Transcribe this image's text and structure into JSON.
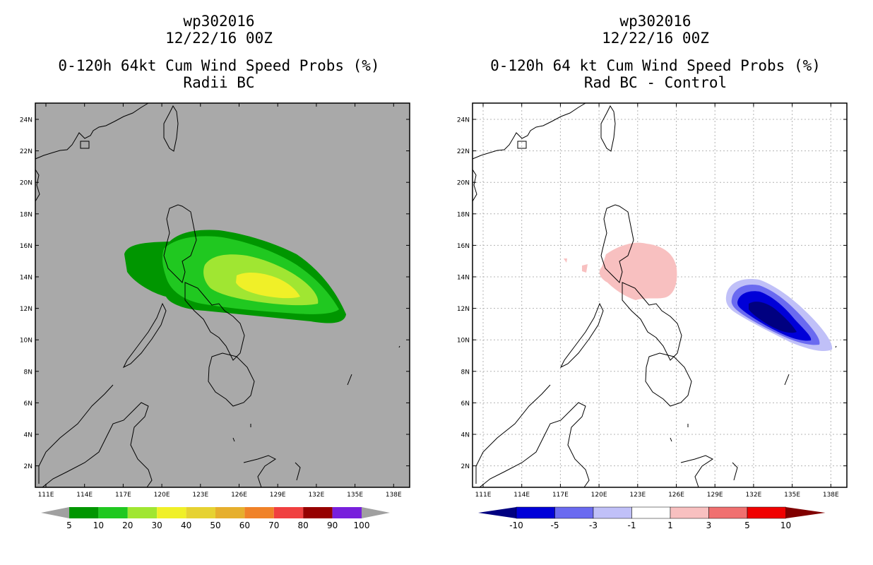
{
  "panels": [
    {
      "storm_id": "wp302016",
      "datetime": "12/22/16 00Z",
      "title": "0-120h 64kt Cum Wind Speed Probs (%)",
      "subtitle": "Radii BC",
      "background": "#a9a9a9",
      "colorbar": {
        "labels": [
          "5",
          "10",
          "20",
          "30",
          "40",
          "50",
          "60",
          "70",
          "80",
          "90",
          "100"
        ],
        "colors": [
          "#009600",
          "#20c820",
          "#a0e632",
          "#f0f028",
          "#e6d232",
          "#e6af2d",
          "#f08228",
          "#f04040",
          "#960000",
          "#7820dc"
        ],
        "end_color": "#a0a0a0"
      }
    },
    {
      "storm_id": "wp302016",
      "datetime": "12/22/16 00Z",
      "title": "0-120h 64 kt Cum Wind Speed Probs (%)",
      "subtitle": "Rad BC - Control",
      "background": "#ffffff",
      "colorbar": {
        "labels": [
          "-10",
          "-5",
          "-3",
          "-1",
          "1",
          "3",
          "5",
          "10"
        ],
        "colors": [
          "#0000d8",
          "#6a6af0",
          "#c0c0f8",
          "#ffffff",
          "#f8c0c0",
          "#f07070",
          "#f00000"
        ],
        "left_end_color": "#000080",
        "right_end_color": "#800000"
      }
    }
  ],
  "map": {
    "lat_labels": [
      "24N",
      "22N",
      "20N",
      "18N",
      "16N",
      "14N",
      "12N",
      "10N",
      "8N",
      "6N",
      "4N",
      "2N"
    ],
    "lon_labels": [
      "111E",
      "114E",
      "117E",
      "120E",
      "123E",
      "126E",
      "129E",
      "132E",
      "135E",
      "138E"
    ]
  }
}
